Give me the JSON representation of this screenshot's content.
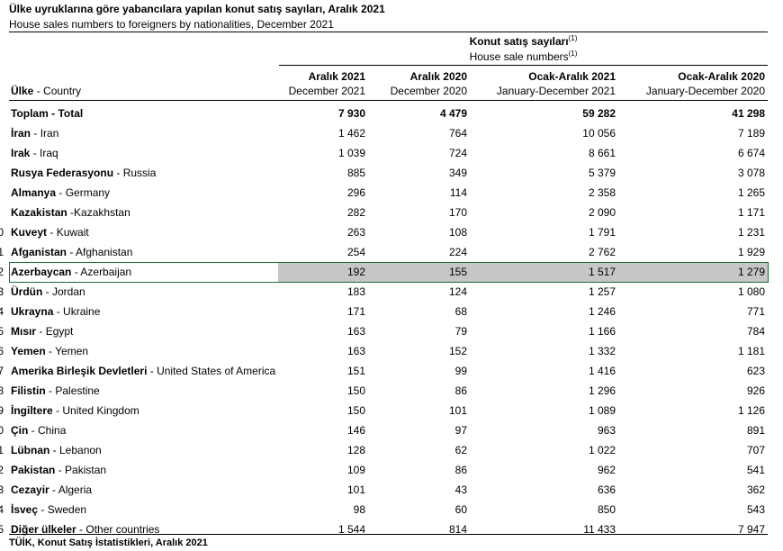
{
  "title": "Ülke uyruklarına göre yabancılara yapılan konut satış sayıları, Aralık 2021",
  "subtitle": "House sales numbers to foreigners by nationalities, December 2021",
  "header": {
    "group": "Konut satış sayıları",
    "group_note": "(1)",
    "group_en": "House sale numbers",
    "group_en_note": "(1)",
    "country": "Ülke",
    "country_en": "- Country",
    "columns": [
      {
        "tr": "Aralık 2021",
        "en": "December 2021"
      },
      {
        "tr": "Aralık 2020",
        "en": "December 2020"
      },
      {
        "tr": "Ocak-Aralık 2021",
        "en": "January-December 2021"
      },
      {
        "tr": "Ocak-Aralık 2020",
        "en": "January-December 2020"
      }
    ]
  },
  "rows": [
    {
      "tr": "Toplam",
      "en": "- Total",
      "values": [
        "7 930",
        "4 479",
        "59 282",
        "41 298"
      ],
      "bold": true
    },
    {
      "tr": "İran",
      "en": "- Iran",
      "values": [
        "1 462",
        "764",
        "10 056",
        "7 189"
      ]
    },
    {
      "tr": "Irak",
      "en": "- Iraq",
      "values": [
        "1 039",
        "724",
        "8 661",
        "6 674"
      ]
    },
    {
      "tr": "Rusya Federasyonu",
      "en": "- Russia",
      "values": [
        "885",
        "349",
        "5 379",
        "3 078"
      ]
    },
    {
      "tr": "Almanya",
      "en": "- Germany",
      "values": [
        "296",
        "114",
        "2 358",
        "1 265"
      ]
    },
    {
      "tr": "Kazakistan",
      "en": "-Kazakhstan",
      "values": [
        "282",
        "170",
        "2 090",
        "1 171"
      ]
    },
    {
      "tr": "Kuveyt",
      "en": "- Kuwait",
      "values": [
        "263",
        "108",
        "1 791",
        "1 231"
      ],
      "row_number": "0"
    },
    {
      "tr": "Afganistan",
      "en": "- Afghanistan",
      "values": [
        "254",
        "224",
        "2 762",
        "1 929"
      ],
      "row_number": "1"
    },
    {
      "tr": "Azerbaycan",
      "en": "- Azerbaijan",
      "values": [
        "192",
        "155",
        "1 517",
        "1 279"
      ],
      "row_number": "2",
      "selected": true
    },
    {
      "tr": "Ürdün",
      "en": "- Jordan",
      "values": [
        "183",
        "124",
        "1 257",
        "1 080"
      ],
      "row_number": "3"
    },
    {
      "tr": "Ukrayna",
      "en": "- Ukraine",
      "values": [
        "171",
        "68",
        "1 246",
        "771"
      ],
      "row_number": "4"
    },
    {
      "tr": "Mısır",
      "en": "- Egypt",
      "values": [
        "163",
        "79",
        "1 166",
        "784"
      ],
      "row_number": "5"
    },
    {
      "tr": "Yemen",
      "en": "- Yemen",
      "values": [
        "163",
        "152",
        "1 332",
        "1 181"
      ],
      "row_number": "6"
    },
    {
      "tr": "Amerika Birleşik Devletleri",
      "en": "- United States of America",
      "values": [
        "151",
        "99",
        "1 416",
        "623"
      ],
      "row_number": "7"
    },
    {
      "tr": "Filistin",
      "en": "- Palestine",
      "values": [
        "150",
        "86",
        "1 296",
        "926"
      ],
      "row_number": "8"
    },
    {
      "tr": "İngiltere",
      "en": "- United Kingdom",
      "values": [
        "150",
        "101",
        "1 089",
        "1 126"
      ],
      "row_number": "9"
    },
    {
      "tr": "Çin",
      "en": "- China",
      "values": [
        "146",
        "97",
        "963",
        "891"
      ],
      "row_number": "0"
    },
    {
      "tr": "Lübnan",
      "en": "- Lebanon",
      "values": [
        "128",
        "62",
        "1 022",
        "707"
      ],
      "row_number": "1"
    },
    {
      "tr": "Pakistan",
      "en": "- Pakistan",
      "values": [
        "109",
        "86",
        "962",
        "541"
      ],
      "row_number": "2"
    },
    {
      "tr": "Cezayir",
      "en": "- Algeria",
      "values": [
        "101",
        "43",
        "636",
        "362"
      ],
      "row_number": "3"
    },
    {
      "tr": "İsveç",
      "en": "- Sweden",
      "values": [
        "98",
        "60",
        "850",
        "543"
      ],
      "row_number": "4"
    },
    {
      "tr": "Diğer ülkeler",
      "en": "- Other countries",
      "values": [
        "1 544",
        "814",
        "11 433",
        "7 947"
      ],
      "row_number": "5"
    }
  ],
  "footer": "TÜİK, Konut Satış İstatistikleri, Aralık 2021"
}
